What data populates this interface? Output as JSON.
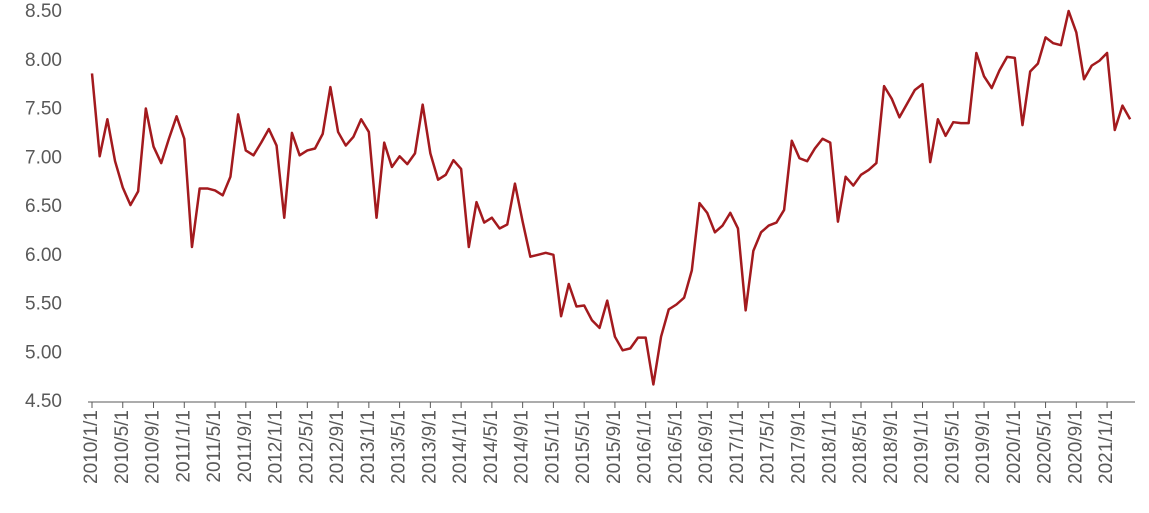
{
  "chart_data": {
    "type": "line",
    "categories": [
      "2010/1/1",
      null,
      null,
      null,
      "2010/5/1",
      null,
      null,
      null,
      "2010/9/1",
      null,
      null,
      null,
      "2011/1/1",
      null,
      null,
      null,
      "2011/5/1",
      null,
      null,
      null,
      "2011/9/1",
      null,
      null,
      null,
      "2012/1/1",
      null,
      null,
      null,
      "2012/5/1",
      null,
      null,
      null,
      "2012/9/1",
      null,
      null,
      null,
      "2013/1/1",
      null,
      null,
      null,
      "2013/5/1",
      null,
      null,
      null,
      "2013/9/1",
      null,
      null,
      null,
      "2014/1/1",
      null,
      null,
      null,
      "2014/5/1",
      null,
      null,
      null,
      "2014/9/1",
      null,
      null,
      null,
      "2015/1/1",
      null,
      null,
      null,
      "2015/5/1",
      null,
      null,
      null,
      "2015/9/1",
      null,
      null,
      null,
      "2016/1/1",
      null,
      null,
      null,
      "2016/5/1",
      null,
      null,
      null,
      "2016/9/1",
      null,
      null,
      null,
      "2017/1/1",
      null,
      null,
      null,
      "2017/5/1",
      null,
      null,
      null,
      "2017/9/1",
      null,
      null,
      null,
      "2018/1/1",
      null,
      null,
      null,
      "2018/5/1",
      null,
      null,
      null,
      "2018/9/1",
      null,
      null,
      null,
      "2019/1/1",
      null,
      null,
      null,
      "2019/5/1",
      null,
      null,
      null,
      "2019/9/1",
      null,
      null,
      null,
      "2020/1/1",
      null,
      null,
      null,
      "2020/5/1",
      null,
      null,
      null,
      "2020/9/1",
      null,
      null,
      null,
      "2021/1/1",
      null,
      null,
      null
    ],
    "series": [
      {
        "color": "#a31a1e",
        "values": [
          7.87,
          7.02,
          7.4,
          6.97,
          6.7,
          6.52,
          6.66,
          7.51,
          7.12,
          6.95,
          7.2,
          7.43,
          7.2,
          6.09,
          6.69,
          6.69,
          6.67,
          6.62,
          6.81,
          7.45,
          7.08,
          7.03,
          7.16,
          7.3,
          7.13,
          6.39,
          7.26,
          7.03,
          7.08,
          7.1,
          7.25,
          7.73,
          7.27,
          7.13,
          7.22,
          7.4,
          7.27,
          6.39,
          7.16,
          6.91,
          7.02,
          6.94,
          7.05,
          7.55,
          7.05,
          6.78,
          6.83,
          6.98,
          6.89,
          6.09,
          6.55,
          6.34,
          6.39,
          6.28,
          6.32,
          6.74,
          6.35,
          5.99,
          6.01,
          6.03,
          6.01,
          5.38,
          5.71,
          5.48,
          5.49,
          5.34,
          5.26,
          5.54,
          5.17,
          5.03,
          5.05,
          5.16,
          5.16,
          4.68,
          5.17,
          5.45,
          5.5,
          5.57,
          5.85,
          6.54,
          6.44,
          6.24,
          6.31,
          6.44,
          6.28,
          5.44,
          6.05,
          6.24,
          6.31,
          6.34,
          6.47,
          7.18,
          7.0,
          6.97,
          7.1,
          7.2,
          7.16,
          6.35,
          6.81,
          6.72,
          6.83,
          6.88,
          6.95,
          7.74,
          7.61,
          7.42,
          7.56,
          7.7,
          7.76,
          6.96,
          7.4,
          7.23,
          7.37,
          7.36,
          7.36,
          8.08,
          7.84,
          7.72,
          7.9,
          8.04,
          8.03,
          7.34,
          7.89,
          7.97,
          8.24,
          8.18,
          8.16,
          8.51,
          8.29,
          7.81,
          7.95,
          8.0,
          8.08,
          7.29,
          7.54,
          7.4
        ]
      }
    ],
    "ylim": [
      4.5,
      8.5
    ],
    "yticks": [
      {
        "value": 4.5,
        "label": "4.50"
      },
      {
        "value": 5,
        "label": "5.00"
      },
      {
        "value": 5.5,
        "label": "5.50"
      },
      {
        "value": 6,
        "label": "6.00"
      },
      {
        "value": 6.5,
        "label": "6.50"
      },
      {
        "value": 7,
        "label": "7.00"
      },
      {
        "value": 7.5,
        "label": "7.50"
      },
      {
        "value": 8,
        "label": "8.00"
      },
      {
        "value": 8.5,
        "label": "8.50"
      }
    ],
    "grid": false
  }
}
